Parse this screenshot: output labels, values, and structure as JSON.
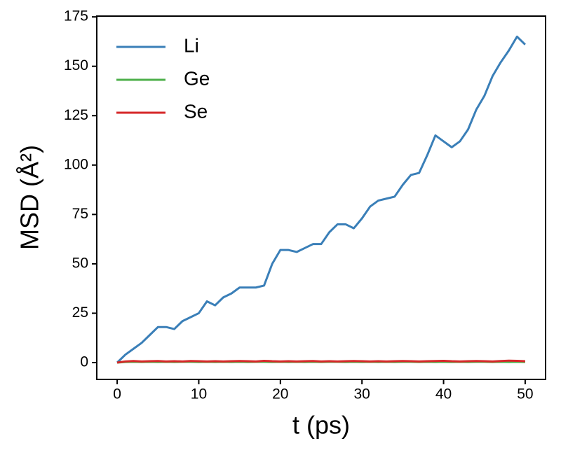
{
  "chart_data": {
    "type": "line",
    "xlabel": "t (ps)",
    "ylabel": "MSD (Å²)",
    "x": [
      0,
      1,
      2,
      3,
      4,
      5,
      6,
      7,
      8,
      9,
      10,
      11,
      12,
      13,
      14,
      15,
      16,
      17,
      18,
      19,
      20,
      21,
      22,
      23,
      24,
      25,
      26,
      27,
      28,
      29,
      30,
      31,
      32,
      33,
      34,
      35,
      36,
      37,
      38,
      39,
      40,
      41,
      42,
      43,
      44,
      45,
      46,
      47,
      48,
      49,
      50
    ],
    "series": [
      {
        "name": "Li",
        "color": "#3a7fb8",
        "values": [
          0,
          4,
          7,
          10,
          14,
          18,
          18,
          17,
          21,
          23,
          25,
          31,
          29,
          33,
          35,
          38,
          38,
          38,
          39,
          50,
          57,
          57,
          56,
          58,
          60,
          60,
          66,
          70,
          70,
          68,
          73,
          79,
          82,
          83,
          84,
          90,
          95,
          96,
          105,
          115,
          112,
          109,
          112,
          118,
          128,
          135,
          145,
          152,
          158,
          165,
          161
        ]
      },
      {
        "name": "Ge",
        "color": "#4daf4a",
        "values": [
          0,
          0.3,
          0.4,
          0.3,
          0.4,
          0.3,
          0.4,
          0.3,
          0.4,
          0.4,
          0.3,
          0.4,
          0.3,
          0.4,
          0.3,
          0.4,
          0.3,
          0.4,
          0.4,
          0.3,
          0.4,
          0.3,
          0.4,
          0.3,
          0.4,
          0.3,
          0.4,
          0.4,
          0.3,
          0.4,
          0.3,
          0.4,
          0.3,
          0.4,
          0.3,
          0.4,
          0.4,
          0.3,
          0.4,
          0.3,
          0.4,
          0.3,
          0.4,
          0.3,
          0.4,
          0.4,
          0.3,
          0.4,
          0.3,
          0.4,
          0.3
        ]
      },
      {
        "name": "Se",
        "color": "#d62728",
        "values": [
          0,
          0.6,
          0.8,
          0.6,
          0.7,
          0.8,
          0.6,
          0.7,
          0.6,
          0.8,
          0.7,
          0.6,
          0.7,
          0.6,
          0.7,
          0.8,
          0.7,
          0.6,
          0.9,
          0.7,
          0.6,
          0.7,
          0.6,
          0.7,
          0.8,
          0.6,
          0.7,
          0.6,
          0.7,
          0.8,
          0.7,
          0.6,
          0.7,
          0.6,
          0.7,
          0.8,
          0.7,
          0.6,
          0.7,
          0.8,
          0.9,
          0.7,
          0.6,
          0.7,
          0.8,
          0.7,
          0.6,
          0.8,
          1.0,
          0.9,
          0.7
        ]
      }
    ],
    "xlim": [
      -2.5,
      52.5
    ],
    "ylim": [
      -8.5,
      175.4
    ],
    "xticks": [
      0,
      10,
      20,
      30,
      40,
      50
    ],
    "yticks": [
      0,
      25,
      50,
      75,
      100,
      125,
      150,
      175
    ],
    "legend": "upper left"
  }
}
